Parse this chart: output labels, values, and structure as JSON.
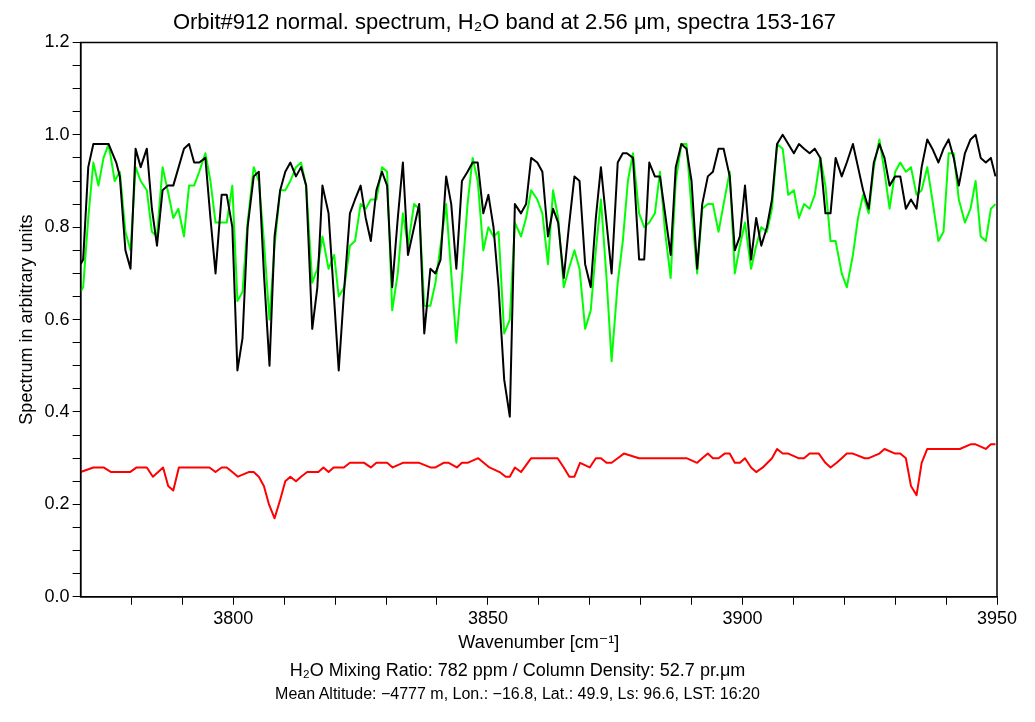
{
  "chart_data": {
    "type": "line",
    "title": "Orbit#912 normal. spectrum, H₂O band at 2.56 μm, spectra 153-167",
    "xlabel": "Wavenumber [cm⁻¹]",
    "ylabel": "Spectrum in arbitrary units",
    "annotations": [
      "H₂O Mixing Ratio: 782 ppm / Column Density: 52.7 pr.μm",
      "Mean Altitude: −4777 m, Lon.: −16.8, Lat.: 49.9, Ls: 96.6, LST: 16:20"
    ],
    "xlim": [
      3770,
      3950
    ],
    "xticks": [
      {
        "value": 3780,
        "label": null
      },
      {
        "value": 3790,
        "label": null
      },
      3800,
      {
        "value": 3810,
        "label": null
      },
      {
        "value": 3820,
        "label": null
      },
      {
        "value": 3830,
        "label": null
      },
      {
        "value": 3840,
        "label": null
      },
      3850,
      {
        "value": 3860,
        "label": null
      },
      {
        "value": 3870,
        "label": null
      },
      {
        "value": 3880,
        "label": null
      },
      {
        "value": 3890,
        "label": null
      },
      3900,
      {
        "value": 3910,
        "label": null
      },
      {
        "value": 3920,
        "label": null
      },
      {
        "value": 3930,
        "label": null
      },
      {
        "value": 3940,
        "label": null
      },
      3950
    ],
    "ylim": [
      0,
      1.2
    ],
    "yticks": [
      {
        "value": 0,
        "label": "0.0"
      },
      {
        "value": 0.05,
        "label": null
      },
      {
        "value": 0.1,
        "label": null
      },
      {
        "value": 0.15,
        "label": null
      },
      {
        "value": 0.2,
        "label": "0.2"
      },
      {
        "value": 0.25,
        "label": null
      },
      {
        "value": 0.3,
        "label": null
      },
      {
        "value": 0.35,
        "label": null
      },
      {
        "value": 0.4,
        "label": "0.4"
      },
      {
        "value": 0.45,
        "label": null
      },
      {
        "value": 0.5,
        "label": null
      },
      {
        "value": 0.55,
        "label": null
      },
      {
        "value": 0.6,
        "label": "0.6"
      },
      {
        "value": 0.65,
        "label": null
      },
      {
        "value": 0.7,
        "label": null
      },
      {
        "value": 0.75,
        "label": null
      },
      {
        "value": 0.8,
        "label": "0.8"
      },
      {
        "value": 0.85,
        "label": null
      },
      {
        "value": 0.9,
        "label": null
      },
      {
        "value": 0.95,
        "label": null
      },
      {
        "value": 1,
        "label": "1.0"
      },
      {
        "value": 1.05,
        "label": null
      },
      {
        "value": 1.1,
        "label": null
      },
      {
        "value": 1.15,
        "label": null
      },
      {
        "value": 1.2,
        "label": "1.2"
      }
    ],
    "grid": false,
    "legend": false,
    "marker": "none",
    "series": [
      {
        "color": "#00ff00",
        "x": [
          3770.0,
          3770.5,
          3771.5,
          3772.5,
          3773.5,
          3774.5,
          3775.5,
          3776.7,
          3777.7,
          3778.8,
          3779.8,
          3780.8,
          3781.8,
          3783.0,
          3784.0,
          3785.0,
          3786.1,
          3787.1,
          3788.2,
          3789.2,
          3790.3,
          3791.3,
          3792.3,
          3793.3,
          3794.5,
          3795.5,
          3796.5,
          3797.7,
          3798.7,
          3799.8,
          3800.8,
          3801.8,
          3802.8,
          3804.0,
          3805.0,
          3806.0,
          3807.1,
          3808.1,
          3809.2,
          3810.2,
          3811.2,
          3812.3,
          3813.3,
          3814.3,
          3815.5,
          3816.5,
          3817.5,
          3818.7,
          3819.8,
          3820.7,
          3821.8,
          3822.9,
          3823.9,
          3825.0,
          3826.0,
          3827.0,
          3828.1,
          3829.2,
          3830.2,
          3831.2,
          3832.3,
          3833.3,
          3834.3,
          3835.5,
          3836.5,
          3837.5,
          3838.7,
          3839.7,
          3840.7,
          3841.8,
          3842.8,
          3843.8,
          3844.9,
          3846.0,
          3847.0,
          3848.0,
          3849.1,
          3850.1,
          3851.1,
          3852.1,
          3853.2,
          3854.3,
          3855.3,
          3856.5,
          3857.5,
          3858.5,
          3859.7,
          3860.7,
          3861.8,
          3862.8,
          3863.8,
          3864.9,
          3865.9,
          3867.0,
          3868.0,
          3869.1,
          3870.2,
          3871.2,
          3872.2,
          3873.3,
          3874.3,
          3875.5,
          3876.5,
          3877.5,
          3878.5,
          3879.7,
          3880.7,
          3881.7,
          3882.8,
          3883.8,
          3884.8,
          3885.9,
          3886.9,
          3888.0,
          3889.0,
          3890.0,
          3891.1,
          3892.1,
          3893.2,
          3894.2,
          3895.3,
          3896.3,
          3897.5,
          3898.5,
          3899.5,
          3900.5,
          3901.7,
          3902.7,
          3903.7,
          3904.8,
          3905.8,
          3906.8,
          3907.9,
          3909.0,
          3910.1,
          3911.1,
          3912.1,
          3913.2,
          3914.2,
          3915.3,
          3916.3,
          3917.3,
          3918.3,
          3919.5,
          3920.5,
          3921.7,
          3922.7,
          3923.7,
          3924.8,
          3925.8,
          3926.9,
          3927.9,
          3928.9,
          3930.0,
          3931.0,
          3932.1,
          3933.1,
          3934.2,
          3935.2,
          3936.3,
          3937.3,
          3938.5,
          3939.5,
          3940.5,
          3941.5,
          3942.5,
          3943.7,
          3944.8,
          3945.8,
          3946.8,
          3947.8,
          3948.8,
          3949.7
        ],
        "values": [
          0.66,
          0.67,
          0.82,
          0.94,
          0.89,
          0.95,
          0.98,
          0.9,
          0.92,
          0.79,
          0.75,
          0.93,
          0.9,
          0.88,
          0.79,
          0.78,
          0.93,
          0.88,
          0.82,
          0.84,
          0.78,
          0.89,
          0.89,
          0.92,
          0.96,
          0.9,
          0.81,
          0.81,
          0.81,
          0.89,
          0.64,
          0.66,
          0.81,
          0.93,
          0.9,
          0.77,
          0.6,
          0.76,
          0.88,
          0.88,
          0.9,
          0.93,
          0.94,
          0.89,
          0.68,
          0.71,
          0.78,
          0.71,
          0.74,
          0.65,
          0.67,
          0.76,
          0.77,
          0.85,
          0.84,
          0.86,
          0.86,
          0.93,
          0.92,
          0.62,
          0.7,
          0.83,
          0.76,
          0.85,
          0.84,
          0.63,
          0.63,
          0.68,
          0.76,
          0.85,
          0.7,
          0.55,
          0.69,
          0.85,
          0.95,
          0.9,
          0.75,
          0.8,
          0.78,
          0.79,
          0.57,
          0.6,
          0.81,
          0.78,
          0.82,
          0.88,
          0.86,
          0.83,
          0.72,
          0.88,
          0.82,
          0.67,
          0.71,
          0.75,
          0.71,
          0.58,
          0.62,
          0.75,
          0.86,
          0.69,
          0.51,
          0.68,
          0.77,
          0.9,
          0.96,
          0.83,
          0.8,
          0.81,
          0.83,
          0.92,
          0.79,
          0.69,
          0.9,
          0.98,
          0.98,
          0.84,
          0.7,
          0.84,
          0.85,
          0.85,
          0.79,
          0.85,
          0.92,
          0.7,
          0.76,
          0.81,
          0.71,
          0.76,
          0.8,
          0.79,
          0.84,
          0.98,
          0.97,
          0.87,
          0.88,
          0.82,
          0.85,
          0.84,
          0.87,
          0.95,
          0.89,
          0.77,
          0.77,
          0.7,
          0.67,
          0.74,
          0.82,
          0.87,
          0.83,
          0.93,
          0.99,
          0.92,
          0.84,
          0.92,
          0.94,
          0.92,
          0.93,
          0.87,
          0.88,
          0.93,
          0.86,
          0.77,
          0.79,
          0.96,
          0.96,
          0.86,
          0.81,
          0.84,
          0.9,
          0.78,
          0.77,
          0.84,
          0.85
        ]
      },
      {
        "color": "#000000",
        "x": [
          3770.0,
          3770.5,
          3771.5,
          3772.5,
          3773.5,
          3775.5,
          3777.0,
          3777.7,
          3778.8,
          3779.8,
          3780.8,
          3781.8,
          3783.0,
          3784.0,
          3785.0,
          3786.1,
          3787.1,
          3788.2,
          3790.3,
          3791.3,
          3792.3,
          3793.3,
          3794.5,
          3795.5,
          3796.5,
          3797.7,
          3798.7,
          3799.8,
          3800.8,
          3801.8,
          3802.8,
          3804.0,
          3805.0,
          3806.0,
          3807.1,
          3808.1,
          3809.2,
          3810.2,
          3811.2,
          3812.3,
          3813.3,
          3814.3,
          3815.5,
          3816.5,
          3817.5,
          3818.7,
          3820.7,
          3821.8,
          3822.9,
          3823.9,
          3825.0,
          3826.0,
          3827.0,
          3828.1,
          3829.2,
          3830.2,
          3831.2,
          3832.3,
          3833.3,
          3834.3,
          3835.5,
          3836.5,
          3837.5,
          3838.7,
          3839.7,
          3840.7,
          3841.8,
          3842.8,
          3843.8,
          3844.9,
          3846.0,
          3847.0,
          3848.0,
          3849.1,
          3850.1,
          3851.1,
          3852.1,
          3853.2,
          3854.3,
          3855.3,
          3856.5,
          3857.5,
          3858.5,
          3859.7,
          3860.7,
          3861.8,
          3862.8,
          3863.8,
          3864.9,
          3865.9,
          3867.0,
          3868.0,
          3869.1,
          3870.2,
          3871.2,
          3872.2,
          3873.3,
          3874.3,
          3875.5,
          3876.5,
          3877.3,
          3878.5,
          3879.7,
          3880.7,
          3881.7,
          3882.8,
          3883.8,
          3884.8,
          3885.9,
          3886.9,
          3888.0,
          3889.0,
          3890.0,
          3891.1,
          3892.1,
          3893.2,
          3894.2,
          3895.3,
          3896.3,
          3897.5,
          3898.5,
          3899.5,
          3900.5,
          3901.7,
          3902.7,
          3903.7,
          3904.8,
          3905.8,
          3906.8,
          3907.9,
          3909.0,
          3910.1,
          3911.1,
          3912.1,
          3913.2,
          3914.2,
          3915.3,
          3916.3,
          3917.3,
          3918.3,
          3919.5,
          3920.5,
          3921.7,
          3922.7,
          3923.7,
          3924.8,
          3925.8,
          3926.9,
          3927.9,
          3928.9,
          3930.0,
          3931.0,
          3932.1,
          3933.1,
          3934.2,
          3935.2,
          3936.3,
          3937.3,
          3938.5,
          3939.5,
          3940.5,
          3941.5,
          3942.5,
          3943.7,
          3944.8,
          3945.8,
          3946.8,
          3947.8,
          3948.8,
          3949.7
        ],
        "values": [
          0.72,
          0.73,
          0.93,
          0.98,
          0.98,
          0.98,
          0.94,
          0.91,
          0.75,
          0.71,
          0.97,
          0.93,
          0.97,
          0.84,
          0.76,
          0.88,
          0.89,
          0.89,
          0.97,
          0.98,
          0.94,
          0.94,
          0.95,
          0.82,
          0.7,
          0.87,
          0.87,
          0.8,
          0.49,
          0.56,
          0.8,
          0.91,
          0.92,
          0.7,
          0.5,
          0.78,
          0.88,
          0.92,
          0.94,
          0.91,
          0.93,
          0.89,
          0.58,
          0.67,
          0.89,
          0.83,
          0.49,
          0.67,
          0.83,
          0.86,
          0.89,
          0.82,
          0.77,
          0.88,
          0.92,
          0.89,
          0.67,
          0.82,
          0.94,
          0.74,
          0.8,
          0.85,
          0.57,
          0.71,
          0.7,
          0.73,
          0.91,
          0.85,
          0.71,
          0.9,
          0.92,
          0.94,
          0.94,
          0.83,
          0.87,
          0.8,
          0.67,
          0.47,
          0.39,
          0.85,
          0.83,
          0.85,
          0.95,
          0.94,
          0.92,
          0.78,
          0.84,
          0.81,
          0.69,
          0.8,
          0.91,
          0.9,
          0.72,
          0.67,
          0.82,
          0.93,
          0.81,
          0.7,
          0.94,
          0.96,
          0.96,
          0.95,
          0.73,
          0.73,
          0.94,
          0.91,
          0.91,
          0.83,
          0.74,
          0.93,
          0.98,
          0.97,
          0.9,
          0.71,
          0.85,
          0.91,
          0.92,
          0.97,
          0.97,
          0.91,
          0.75,
          0.78,
          0.89,
          0.73,
          0.82,
          0.76,
          0.8,
          0.86,
          0.98,
          1.0,
          0.98,
          0.96,
          0.98,
          0.97,
          0.96,
          0.97,
          0.95,
          0.83,
          0.83,
          0.95,
          0.91,
          0.94,
          0.98,
          0.93,
          0.88,
          0.84,
          0.94,
          0.98,
          0.95,
          0.89,
          0.91,
          0.91,
          0.84,
          0.86,
          0.84,
          0.93,
          0.99,
          0.97,
          0.94,
          0.97,
          0.99,
          0.95,
          0.89,
          0.96,
          0.99,
          1.0,
          0.95,
          0.94,
          0.95,
          0.91
        ]
      },
      {
        "color": "#ff0000",
        "x": [
          3770.0,
          3772.5,
          3774.5,
          3776.0,
          3777.0,
          3778.0,
          3779.7,
          3781.0,
          3783.0,
          3784.2,
          3786.2,
          3787.2,
          3788.2,
          3789.3,
          3792.3,
          3795.3,
          3796.5,
          3797.7,
          3798.7,
          3799.8,
          3800.9,
          3803.0,
          3804.0,
          3805.0,
          3806.0,
          3807.0,
          3808.1,
          3809.2,
          3810.2,
          3811.2,
          3812.3,
          3813.3,
          3814.5,
          3816.7,
          3817.7,
          3818.7,
          3819.7,
          3821.7,
          3822.9,
          3824.0,
          3825.7,
          3827.0,
          3828.1,
          3829.2,
          3830.2,
          3831.3,
          3833.3,
          3835.3,
          3836.5,
          3838.7,
          3839.7,
          3841.3,
          3842.3,
          3843.9,
          3844.9,
          3846.0,
          3848.1,
          3850.3,
          3852.3,
          3853.5,
          3854.3,
          3855.3,
          3856.5,
          3858.5,
          3861.7,
          3863.7,
          3864.9,
          3866.0,
          3867.0,
          3868.1,
          3870.0,
          3871.2,
          3872.2,
          3873.3,
          3874.3,
          3875.5,
          3876.7,
          3879.7,
          3881.7,
          3884.7,
          3885.9,
          3887.0,
          3889.0,
          3891.1,
          3892.1,
          3893.2,
          3894.2,
          3895.3,
          3896.5,
          3897.5,
          3898.5,
          3899.5,
          3900.5,
          3901.7,
          3902.7,
          3904.0,
          3905.8,
          3906.8,
          3907.9,
          3909.0,
          3911.0,
          3912.1,
          3913.2,
          3915.0,
          3916.3,
          3917.3,
          3918.5,
          3919.5,
          3920.5,
          3921.7,
          3924.0,
          3924.8,
          3926.9,
          3927.9,
          3930.0,
          3931.0,
          3932.1,
          3933.1,
          3934.2,
          3935.2,
          3936.3,
          3937.3,
          3938.5,
          3940.5,
          3941.5,
          3942.7,
          3944.8,
          3945.8,
          3947.8,
          3948.8,
          3949.7
        ],
        "values": [
          0.27,
          0.28,
          0.28,
          0.27,
          0.27,
          0.27,
          0.27,
          0.28,
          0.28,
          0.26,
          0.28,
          0.24,
          0.23,
          0.28,
          0.28,
          0.28,
          0.27,
          0.28,
          0.28,
          0.27,
          0.26,
          0.27,
          0.27,
          0.26,
          0.24,
          0.2,
          0.17,
          0.21,
          0.25,
          0.26,
          0.25,
          0.26,
          0.27,
          0.27,
          0.28,
          0.27,
          0.28,
          0.28,
          0.29,
          0.29,
          0.29,
          0.28,
          0.29,
          0.29,
          0.29,
          0.28,
          0.29,
          0.29,
          0.29,
          0.28,
          0.28,
          0.29,
          0.29,
          0.28,
          0.29,
          0.29,
          0.3,
          0.28,
          0.27,
          0.26,
          0.26,
          0.28,
          0.27,
          0.3,
          0.3,
          0.3,
          0.28,
          0.26,
          0.26,
          0.29,
          0.28,
          0.3,
          0.3,
          0.29,
          0.29,
          0.3,
          0.31,
          0.3,
          0.3,
          0.3,
          0.3,
          0.3,
          0.3,
          0.29,
          0.3,
          0.31,
          0.3,
          0.3,
          0.31,
          0.31,
          0.29,
          0.29,
          0.3,
          0.28,
          0.27,
          0.28,
          0.3,
          0.32,
          0.31,
          0.31,
          0.3,
          0.3,
          0.31,
          0.31,
          0.29,
          0.28,
          0.29,
          0.3,
          0.31,
          0.31,
          0.3,
          0.3,
          0.31,
          0.32,
          0.31,
          0.31,
          0.3,
          0.24,
          0.22,
          0.29,
          0.32,
          0.32,
          0.32,
          0.32,
          0.32,
          0.32,
          0.33,
          0.33,
          0.32,
          0.33,
          0.33
        ]
      }
    ]
  }
}
